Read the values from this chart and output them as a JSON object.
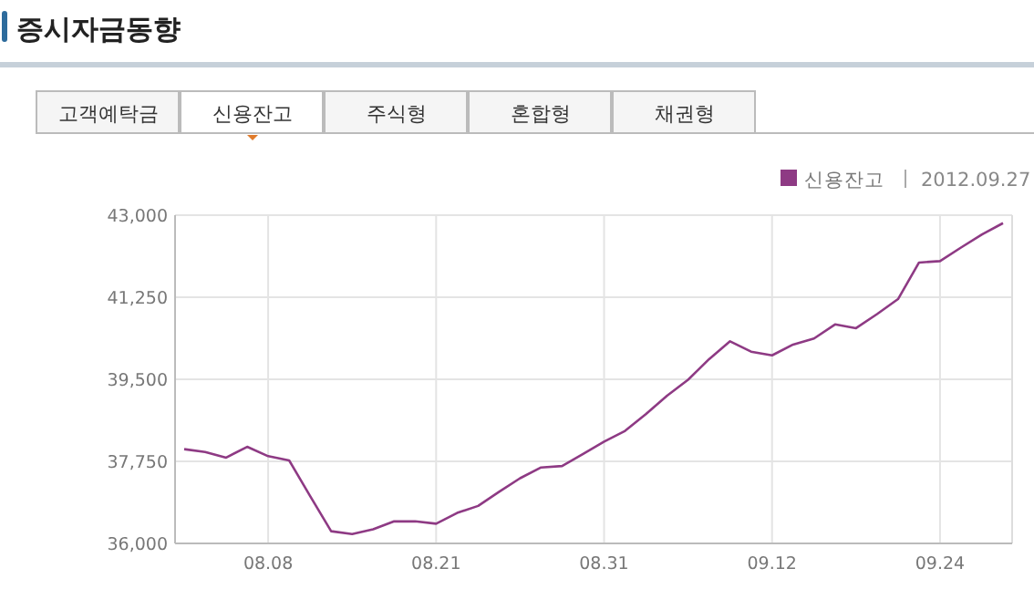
{
  "chart_data": {
    "type": "line",
    "title": "증시자금동향",
    "annotations": [
      "고객예탁금",
      "신용잔고",
      "주식형",
      "혼합형",
      "채권형",
      "2012.09.27"
    ],
    "categories": [
      null,
      null,
      null,
      null,
      "08.08",
      null,
      null,
      null,
      null,
      null,
      null,
      null,
      "08.21",
      null,
      null,
      null,
      null,
      null,
      null,
      null,
      "08.31",
      null,
      null,
      null,
      null,
      null,
      null,
      null,
      "09.12",
      null,
      null,
      null,
      null,
      null,
      null,
      null,
      "09.24",
      null,
      null,
      null
    ],
    "series": [
      {
        "name": "신용잔고",
        "color": "#8e3a84",
        "values": [
          38010,
          37950,
          37830,
          38060,
          37860,
          37770,
          37010,
          36260,
          36200,
          36300,
          36470,
          36470,
          36420,
          36650,
          36800,
          37100,
          37390,
          37620,
          37650,
          37910,
          38170,
          38400,
          38760,
          39150,
          39490,
          39930,
          40310,
          40090,
          40010,
          40240,
          40370,
          40670,
          40590,
          40890,
          41210,
          41990,
          42020,
          42310,
          42590,
          42830
        ]
      }
    ],
    "ylim": [
      36000,
      43000
    ],
    "yticks": [
      {
        "value": 36000,
        "label": "36,000"
      },
      {
        "value": 37750,
        "label": "37,750"
      },
      {
        "value": 39500,
        "label": "39,500"
      },
      {
        "value": 41250,
        "label": "41,250"
      },
      {
        "value": 43000,
        "label": "43,000"
      }
    ],
    "grid": true,
    "legend": "top right",
    "marker": "none",
    "line_style": "solid"
  }
}
